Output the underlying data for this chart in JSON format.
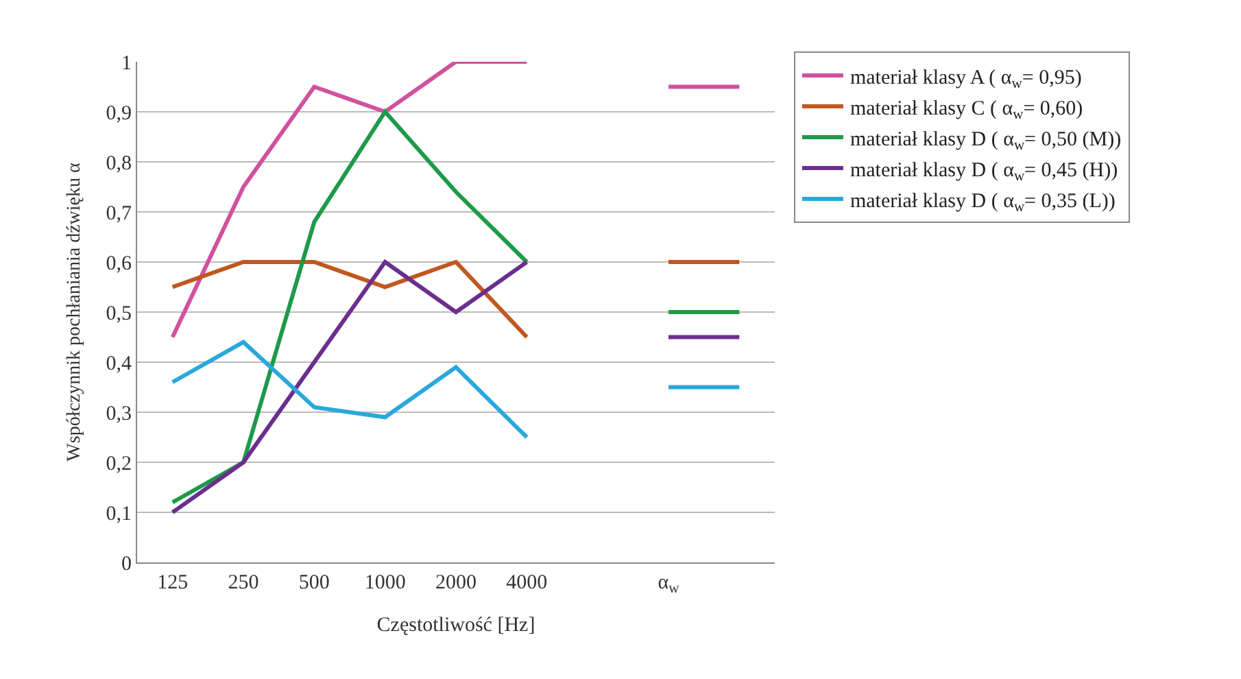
{
  "chart_data": {
    "type": "line",
    "xlabel": "Częstotliwość [Hz]",
    "ylabel": "Współczynnik pochłaniania dźwięku α",
    "categories": [
      "125",
      "250",
      "500",
      "1000",
      "2000",
      "4000",
      null,
      "α$_{w}$",
      null
    ],
    "series": [
      {
        "name": "materiał klasy A ( α$_{w}$= 0,95)",
        "color": "#d0529f",
        "values": [
          0.45,
          0.75,
          0.95,
          0.9,
          1.0,
          1.0,
          null,
          0.95,
          0.95
        ]
      },
      {
        "name": "materiał klasy C ( α$_{w}$= 0,60)",
        "color": "#c0581f",
        "values": [
          0.55,
          0.6,
          0.6,
          0.55,
          0.6,
          0.45,
          null,
          0.6,
          0.6
        ]
      },
      {
        "name": "materiał klasy D ( α$_{w}$= 0,50 (M))",
        "color": "#1e9a4a",
        "values": [
          0.12,
          0.2,
          0.68,
          0.9,
          0.74,
          0.6,
          null,
          0.5,
          0.5
        ]
      },
      {
        "name": "materiał klasy D ( α$_{w}$= 0,45 (H))",
        "color": "#6a2f8e",
        "values": [
          0.1,
          0.2,
          0.4,
          0.6,
          0.5,
          0.6,
          null,
          0.45,
          0.45
        ]
      },
      {
        "name": "materiał klasy D ( α$_{w}$= 0,35 (L))",
        "color": "#2aa8dc",
        "values": [
          0.36,
          0.44,
          0.31,
          0.29,
          0.39,
          0.25,
          null,
          0.35,
          0.35
        ]
      }
    ],
    "ylim": [
      0,
      1
    ],
    "yticks": [
      0,
      {
        "value": 0.1,
        "label": "0,1"
      },
      {
        "value": 0.2,
        "label": "0,2"
      },
      {
        "value": 0.3,
        "label": "0,3"
      },
      {
        "value": 0.4,
        "label": "0,4"
      },
      {
        "value": 0.5,
        "label": "0,5"
      },
      {
        "value": 0.6,
        "label": "0,6"
      },
      {
        "value": 0.7,
        "label": "0,7"
      },
      {
        "value": 0.8,
        "label": "0,8"
      },
      {
        "value": 0.9,
        "label": "0,9"
      },
      1
    ],
    "grid": "y",
    "legend": "right",
    "marker": "none",
    "line_style": "solid"
  }
}
